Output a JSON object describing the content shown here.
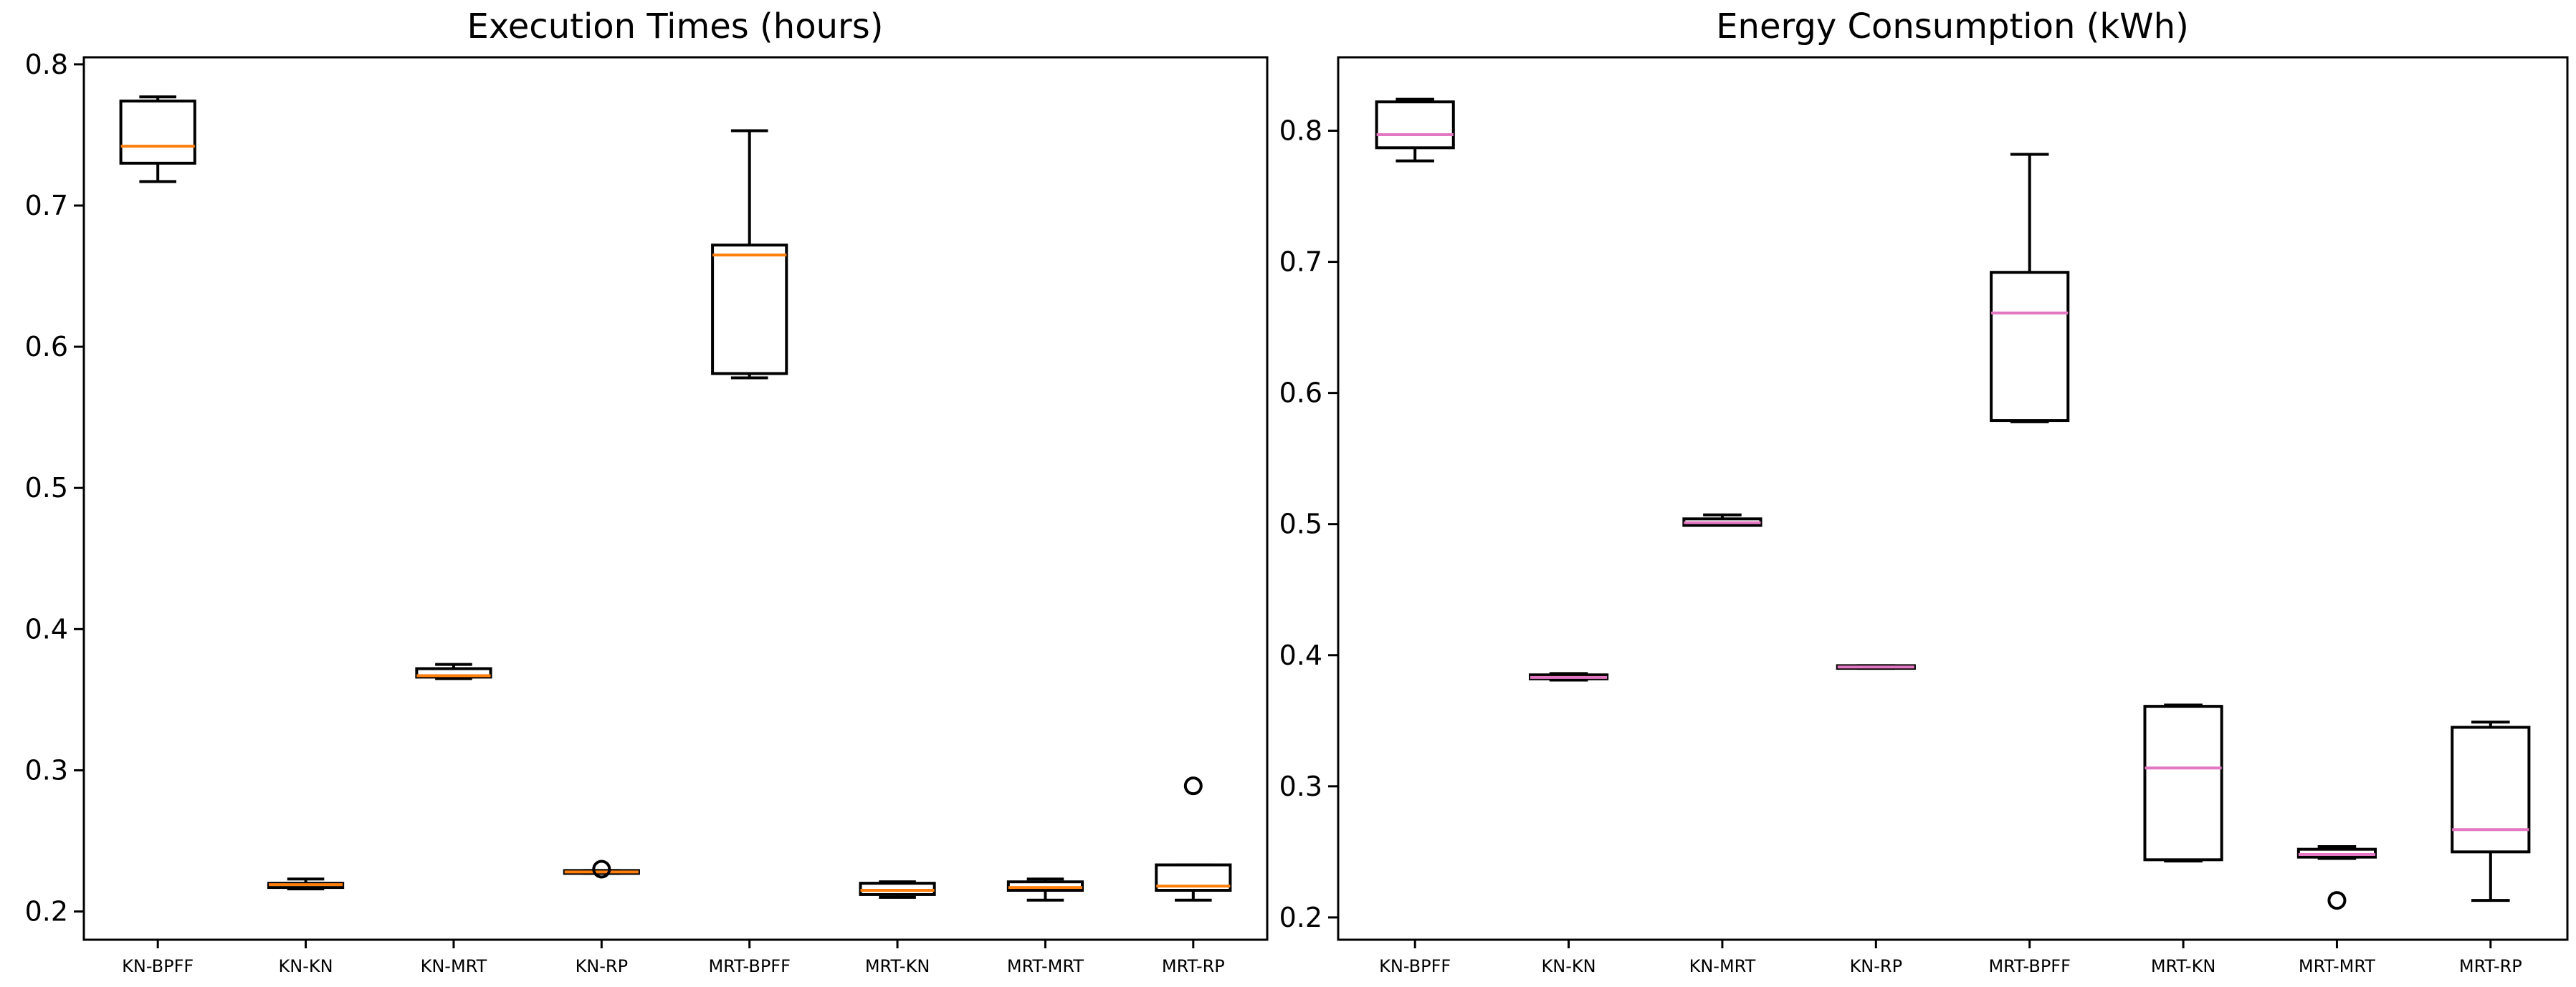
{
  "chart_data": [
    {
      "type": "box",
      "title": "Execution Times (hours)",
      "xlabel": "",
      "ylabel": "",
      "ylim": [
        0.18,
        0.805
      ],
      "yticks": [
        "0.2",
        "0.3",
        "0.4",
        "0.5",
        "0.6",
        "0.7",
        "0.8"
      ],
      "median_color": "#ff7f0e",
      "categories": [
        "KN-BPFF",
        "KN-KN",
        "KN-MRT",
        "KN-RP",
        "MRT-BPFF",
        "MRT-KN",
        "MRT-MRT",
        "MRT-RP"
      ],
      "boxes": [
        {
          "whislo": 0.717,
          "q1": 0.73,
          "med": 0.742,
          "q3": 0.774,
          "whishi": 0.777,
          "fliers": []
        },
        {
          "whislo": 0.216,
          "q1": 0.217,
          "med": 0.219,
          "q3": 0.22,
          "whishi": 0.223,
          "fliers": []
        },
        {
          "whislo": 0.365,
          "q1": 0.366,
          "med": 0.367,
          "q3": 0.372,
          "whishi": 0.375,
          "fliers": []
        },
        {
          "whislo": 0.227,
          "q1": 0.227,
          "med": 0.228,
          "q3": 0.229,
          "whishi": 0.229,
          "fliers": [
            0.23
          ]
        },
        {
          "whislo": 0.578,
          "q1": 0.581,
          "med": 0.665,
          "q3": 0.672,
          "whishi": 0.753,
          "fliers": []
        },
        {
          "whislo": 0.21,
          "q1": 0.212,
          "med": 0.215,
          "q3": 0.22,
          "whishi": 0.221,
          "fliers": []
        },
        {
          "whislo": 0.208,
          "q1": 0.215,
          "med": 0.217,
          "q3": 0.221,
          "whishi": 0.223,
          "fliers": []
        },
        {
          "whislo": 0.208,
          "q1": 0.215,
          "med": 0.218,
          "q3": 0.233,
          "whishi": 0.233,
          "fliers": [
            0.289
          ]
        }
      ]
    },
    {
      "type": "box",
      "title": "Energy Consumption (kWh)",
      "xlabel": "",
      "ylabel": "",
      "ylim": [
        0.183,
        0.856
      ],
      "yticks": [
        "0.2",
        "0.3",
        "0.4",
        "0.5",
        "0.6",
        "0.7",
        "0.8"
      ],
      "median_color": "#e377c2",
      "categories": [
        "KN-BPFF",
        "KN-KN",
        "KN-MRT",
        "KN-RP",
        "MRT-BPFF",
        "MRT-KN",
        "MRT-MRT",
        "MRT-RP"
      ],
      "boxes": [
        {
          "whislo": 0.777,
          "q1": 0.787,
          "med": 0.797,
          "q3": 0.822,
          "whishi": 0.824,
          "fliers": []
        },
        {
          "whislo": 0.381,
          "q1": 0.382,
          "med": 0.383,
          "q3": 0.385,
          "whishi": 0.386,
          "fliers": []
        },
        {
          "whislo": 0.499,
          "q1": 0.499,
          "med": 0.501,
          "q3": 0.504,
          "whishi": 0.507,
          "fliers": []
        },
        {
          "whislo": 0.39,
          "q1": 0.39,
          "med": 0.391,
          "q3": 0.392,
          "whishi": 0.392,
          "fliers": []
        },
        {
          "whislo": 0.578,
          "q1": 0.579,
          "med": 0.661,
          "q3": 0.692,
          "whishi": 0.782,
          "fliers": []
        },
        {
          "whislo": 0.243,
          "q1": 0.244,
          "med": 0.314,
          "q3": 0.361,
          "whishi": 0.362,
          "fliers": []
        },
        {
          "whislo": 0.245,
          "q1": 0.246,
          "med": 0.248,
          "q3": 0.252,
          "whishi": 0.254,
          "fliers": [
            0.213
          ]
        },
        {
          "whislo": 0.213,
          "q1": 0.25,
          "med": 0.267,
          "q3": 0.345,
          "whishi": 0.349,
          "fliers": []
        }
      ]
    }
  ]
}
